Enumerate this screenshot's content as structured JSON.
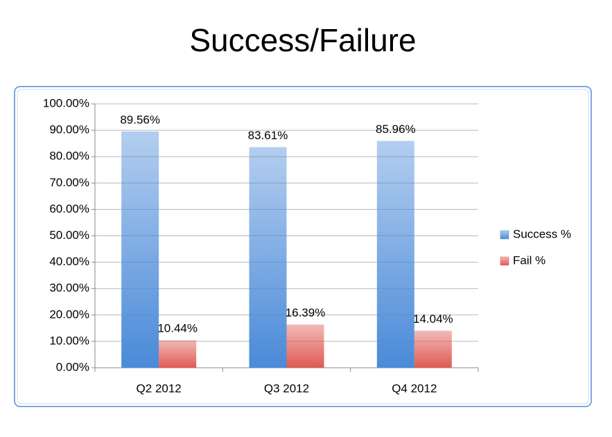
{
  "chart_data": {
    "type": "bar",
    "title": "Success/Failure",
    "categories": [
      "Q2 2012",
      "Q3 2012",
      "Q4 2012"
    ],
    "series": [
      {
        "name": "Success %",
        "color": "#4a8ad8",
        "values": [
          89.56,
          83.61,
          85.96
        ],
        "value_labels": [
          "89.56%",
          "83.61%",
          "85.96%"
        ]
      },
      {
        "name": "Fail %",
        "color": "#e05a54",
        "values": [
          10.44,
          16.39,
          14.04
        ],
        "value_labels": [
          "10.44%",
          "16.39%",
          "14.04%"
        ]
      }
    ],
    "ylim": [
      0,
      100
    ],
    "yticks": [
      {
        "value": 0,
        "label": "0.00%"
      },
      {
        "value": 10,
        "label": "10.00%"
      },
      {
        "value": 20,
        "label": "20.00%"
      },
      {
        "value": 30,
        "label": "30.00%"
      },
      {
        "value": 40,
        "label": "40.00%"
      },
      {
        "value": 50,
        "label": "50.00%"
      },
      {
        "value": 60,
        "label": "60.00%"
      },
      {
        "value": 70,
        "label": "70.00%"
      },
      {
        "value": 80,
        "label": "80.00%"
      },
      {
        "value": 90,
        "label": "90.00%"
      },
      {
        "value": 100,
        "label": "100.00%"
      }
    ],
    "grid": true,
    "legend": "right"
  }
}
